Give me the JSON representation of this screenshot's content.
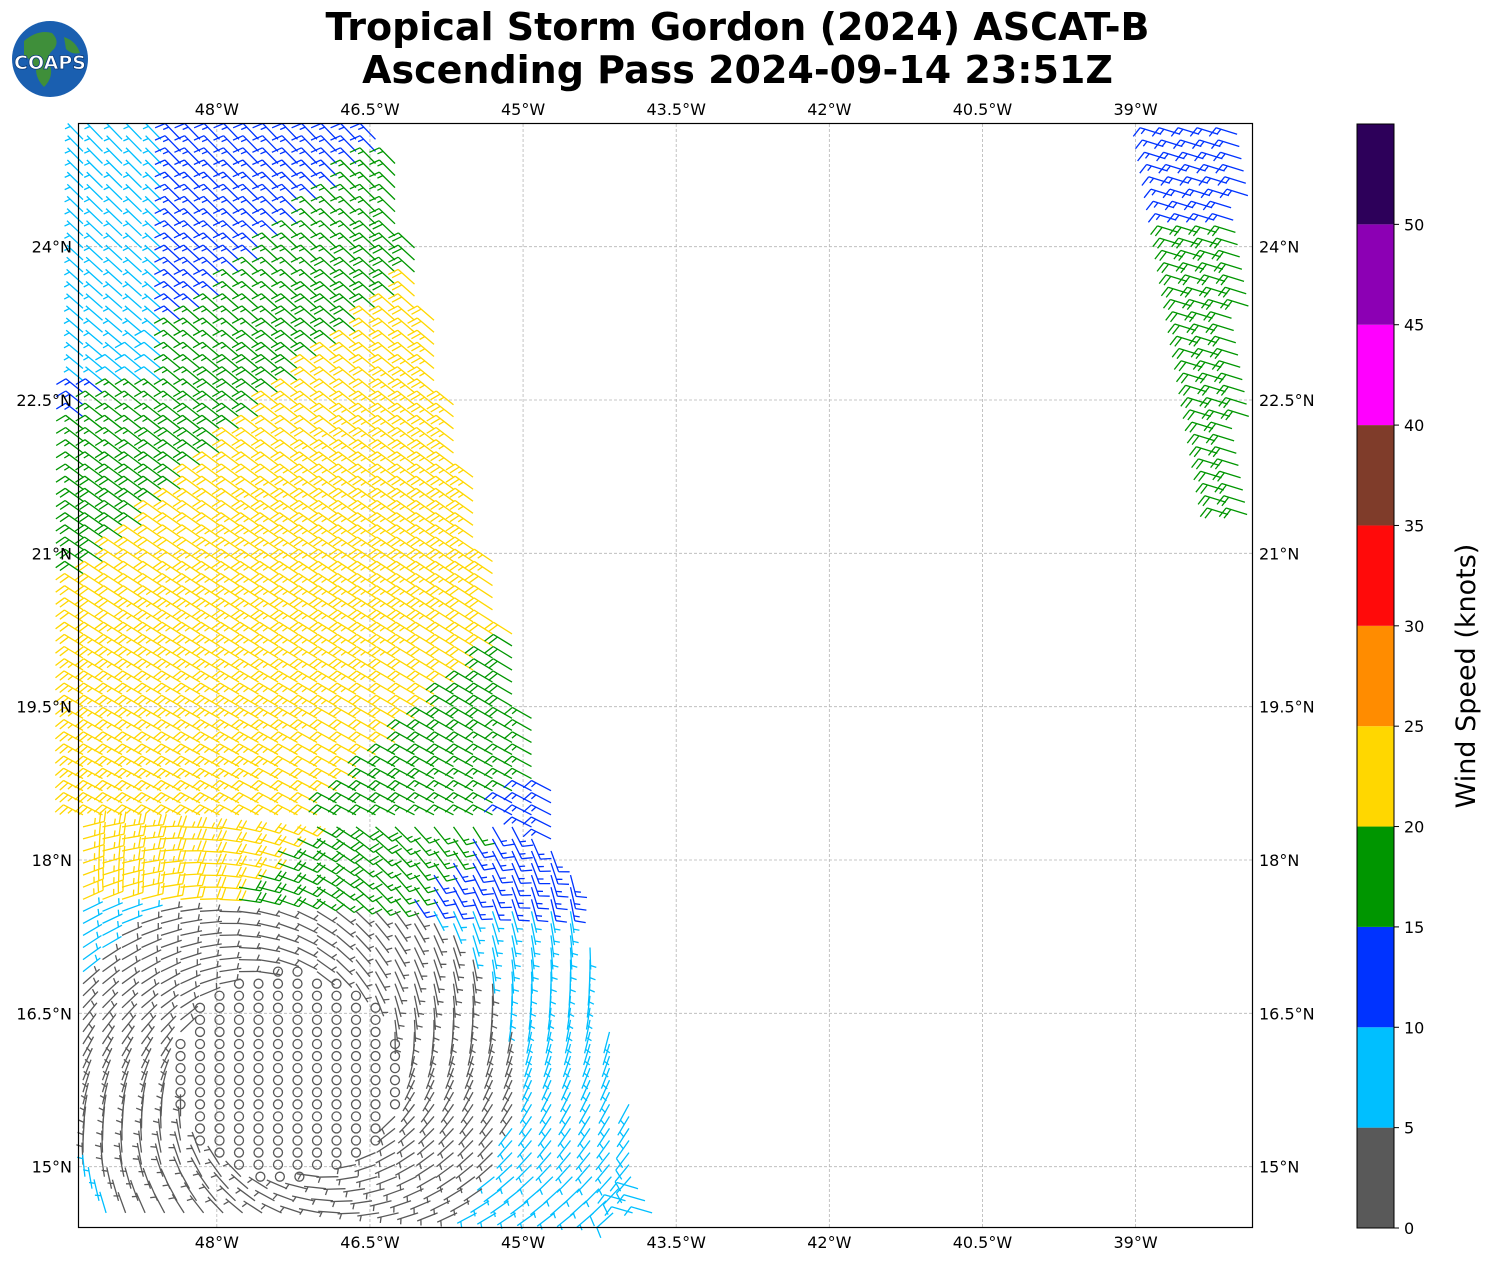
{
  "title": {
    "line1": "Tropical Storm Gordon (2024) ASCAT-B",
    "line2": "Ascending Pass 2024-09-14 23:51Z"
  },
  "logo": {
    "text": "COAPS"
  },
  "map": {
    "lon_ticks": [
      "48°W",
      "46.5°W",
      "45°W",
      "43.5°W",
      "42°W",
      "40.5°W",
      "39°W"
    ],
    "lat_ticks": [
      "24°N",
      "22.5°N",
      "21°N",
      "19.5°N",
      "18°N",
      "16.5°N",
      "15°N"
    ],
    "lon_range": [
      -49.35,
      -37.85
    ],
    "lat_range": [
      14.4,
      25.2
    ],
    "gridlines": true
  },
  "colorbar": {
    "label": "Wind Speed (knots)",
    "bounds": [
      0,
      5,
      10,
      15,
      20,
      25,
      30,
      35,
      40,
      45,
      50,
      55
    ],
    "tick_labels": [
      "0",
      "5",
      "10",
      "15",
      "20",
      "25",
      "30",
      "35",
      "40",
      "45",
      "50"
    ],
    "colors": [
      "#595959",
      "#00bfff",
      "#0033ff",
      "#009600",
      "#ffd700",
      "#ff8c00",
      "#ff0a0a",
      "#7f3c2a",
      "#ff00ff",
      "#8c00b4",
      "#2d005a"
    ]
  },
  "wind_regions": [
    {
      "speed": "0-5 kt",
      "color": "#595959",
      "label": "calm center near 15.9°N 47.3°W"
    },
    {
      "speed": "5-10 kt",
      "color": "#00bfff"
    },
    {
      "speed": "10-15 kt",
      "color": "#0033ff"
    },
    {
      "speed": "15-20 kt",
      "color": "#009600"
    },
    {
      "speed": "20-25 kt",
      "color": "#ffd700"
    }
  ]
}
